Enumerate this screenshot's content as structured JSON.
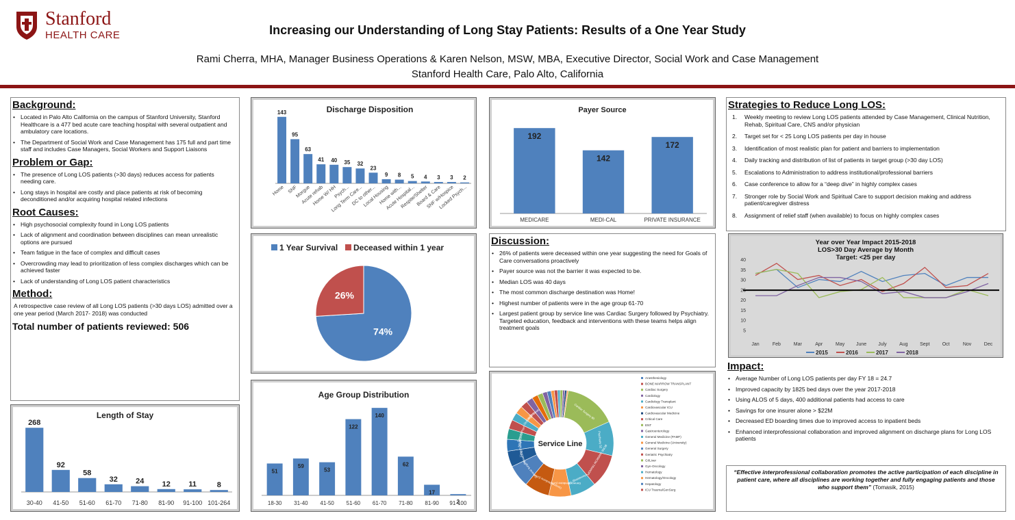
{
  "header": {
    "logo_line1": "Stanford",
    "logo_line2": "HEALTH CARE",
    "title": "Increasing our Understanding of Long Stay Patients:  Results of a One Year Study",
    "authors": "Rami Cherra, MHA, Manager Business Operations & Karen Nelson, MSW, MBA, Executive Director, Social Work and Case Management",
    "affiliation": "Stanford Health Care, Palo Alto, California"
  },
  "background": {
    "heading": "Background:",
    "items": [
      "Located in Palo Alto California on the campus of Stanford University, Stanford Healthcare is a 477 bed acute care teaching hospital with several outpatient and ambulatory care locations.",
      "The Department of Social Work and Case Management has 175 full and part time staff  and includes Case Managers, Social Workers and Support Liaisons"
    ]
  },
  "problem": {
    "heading": "Problem or Gap:",
    "items": [
      "The presence of Long LOS patients (>30 days) reduces access for patients needing care.",
      "Long stays in hospital are costly and place patients at risk of becoming deconditioned and/or acquiring hospital related infections"
    ]
  },
  "root": {
    "heading": "Root  Causes:",
    "items": [
      "High psychosocial complexity found in Long LOS patients",
      "Lack of alignment and coordination between disciplines can mean unrealistic options are pursued",
      "Team fatigue in the face of complex and difficult cases",
      "Overcrowding may lead to prioritization of less complex discharges which can be achieved faster",
      "Lack of understanding of Long LOS patient characteristics"
    ]
  },
  "method": {
    "heading": "Method:",
    "text": "A retrospective case review of all Long LOS patients (>30 days LOS) admitted over a one year period (March 2017- 2018) was conducted",
    "total": "Total number of patients reviewed:  506"
  },
  "strategies": {
    "heading": "Strategies to Reduce Long LOS:",
    "items": [
      {
        "n": "1.",
        "t": "Weekly meeting to review  Long LOS patients attended by  Case Management, Clinical Nutrition, Rehab, Spiritual Care, CNS and/or physician"
      },
      {
        "n": "2.",
        "t": "Target set for < 25 Long LOS patients per day in house"
      },
      {
        "n": "3.",
        "t": "Identification of most realistic plan for patient and barriers to implementation"
      },
      {
        "n": "4.",
        "t": "Daily tracking and distribution of list of patients in target group (>30 day LOS)"
      },
      {
        "n": "5.",
        "t": "Escalations to Administration to address institutional/professional barriers"
      },
      {
        "n": "6.",
        "t": "Case conference to allow for a “deep dive” in highly complex cases"
      },
      {
        "n": "7.",
        "t": "Stronger role by Social Work and Spiritual Care to support decision making and address patient/caregiver distress"
      },
      {
        "n": "8.",
        "t": "Assignment of relief staff (when available) to focus on highly complex cases"
      }
    ]
  },
  "discussion": {
    "heading": "Discussion:",
    "items": [
      "26% of patients were deceased within one year suggesting the need for Goals of Care conversations proactively",
      "Payer source was not the barrier it was expected to be.",
      "Median LOS was 40 days",
      "The most common discharge destination was Home!",
      "Highest number of patients were in the age group 61-70",
      "Largest patient group by service line was Cardiac Surgery followed by Psychiatry. Targeted education, feedback and interventions with these teams helps align treatment goals"
    ]
  },
  "impact": {
    "heading": "Impact:",
    "items": [
      "Average Number of Long LOS patients per day  FY 18 = 24.7",
      "Improved capacity by 1825 bed days over the year 2017-2018",
      "Using ALOS of 5 days, 400 additional patients had access to  care",
      "Savings for one insurer alone > $22M",
      "Decreased ED boarding times due to improved access to inpatient beds",
      "Enhanced interprofessional collaboration and improved alignment on discharge plans for Long LOS patients"
    ]
  },
  "quote": {
    "text": "“Effective interprofessional collaboration promotes the active participation of each discipline in patient care, where all disciplines are working together and fully engaging patients and those who support them”",
    "cite": " (Tomasik, 2015)"
  },
  "colors": {
    "brand": "#8c1515",
    "bar": "#4f81bd",
    "red": "#c0504d",
    "green": "#9bbb59",
    "purple": "#8064a2"
  },
  "chart_data": [
    {
      "id": "los",
      "type": "bar",
      "title": "Length of Stay",
      "categories": [
        "30-40",
        "41-50",
        "51-60",
        "61-70",
        "71-80",
        "81-90",
        "91-100",
        "101-264"
      ],
      "values": [
        268,
        92,
        58,
        32,
        24,
        12,
        11,
        8
      ]
    },
    {
      "id": "disposition",
      "type": "bar",
      "title": "Discharge Disposition",
      "categories": [
        "Home",
        "SNF",
        "Morgue",
        "Acute rehab",
        "Home W/ HH",
        "Psych...",
        "Long Term Care...",
        "DC to other...",
        "Local Housing",
        "Home with...",
        "Acute Hospital...",
        "Respite/Shelter",
        "Board & Care",
        "SNF w/Hospice",
        "Locked Psych..."
      ],
      "values": [
        143,
        95,
        63,
        41,
        40,
        35,
        32,
        23,
        9,
        8,
        5,
        4,
        3,
        3,
        2
      ]
    },
    {
      "id": "survival",
      "type": "pie",
      "series": [
        {
          "name": "1 Year Survival",
          "value": 74,
          "label": "74%"
        },
        {
          "name": "Deceased within 1 year",
          "value": 26,
          "label": "26%"
        }
      ]
    },
    {
      "id": "age",
      "type": "bar",
      "title": "Age Group Distribution",
      "categories": [
        "18-30",
        "31-40",
        "41-50",
        "51-60",
        "61-70",
        "71-80",
        "81-90",
        "91-100"
      ],
      "values": [
        51,
        59,
        53,
        122,
        140,
        62,
        17,
        2
      ]
    },
    {
      "id": "payer",
      "type": "bar",
      "title": "Payer Source",
      "categories": [
        "MEDICARE",
        "MEDI-CAL",
        "PRIVATE INSURANCE"
      ],
      "values": [
        192,
        142,
        172
      ]
    },
    {
      "id": "service",
      "type": "pie",
      "title": "Service Line",
      "legend": [
        "Anesthesiology",
        "BONE MARROW TRANSPLANT",
        "Cardiac Surgery",
        "Cardiology",
        "Cardiology Transplant",
        "Cardiovascular ICU",
        "Cardiovascular Medicine",
        "Critical Care",
        "ENT",
        "Gastroenterology",
        "General Medicine (PAMF)",
        "General Medicine (University)",
        "General Surgery",
        "Geriatric Psychiatry",
        "GI/Liver",
        "Gyn-Oncology",
        "Hematology",
        "Hematology/Oncology",
        "Hepatology",
        "ICU Trauma/GenSurg"
      ],
      "slices": [
        {
          "label": "Cardiac Surgery 80",
          "value": 80,
          "color": "#9bbb59"
        },
        {
          "label": "Psychiatry 52",
          "value": 52,
          "color": "#4bacc6"
        },
        {
          "label": "BONE MARROW TRANSPLANT 51",
          "value": 51,
          "color": "#c0504d"
        },
        {
          "label": "Hematology 39",
          "value": 39,
          "color": "#4bacc6"
        },
        {
          "label": "General Medicine (University) 34",
          "value": 34,
          "color": "#f79646"
        },
        {
          "label": "General Medicine (University) 38",
          "value": 38,
          "color": "#c55a11"
        },
        {
          "label": "General Surgery 34",
          "value": 34,
          "color": "#4f81bd"
        },
        {
          "label": "Hematology 24",
          "value": 24,
          "color": "#1f5a96"
        },
        {
          "label": "Liver Transplant 18",
          "value": 18,
          "color": "#2e75b6"
        },
        {
          "label": "NEUROLOGY 16",
          "value": 16,
          "color": "#2a9d8f"
        },
        {
          "label": "Genetic Psychiatry 14",
          "value": 14,
          "color": "#c0504d"
        },
        {
          "label": "",
          "value": 12,
          "color": "#4bacc6"
        },
        {
          "label": "Oncology 12",
          "value": 12,
          "color": "#f79646"
        },
        {
          "label": "Critical Care 11",
          "value": 11,
          "color": "#c0504d"
        },
        {
          "label": "Hematology 10",
          "value": 10,
          "color": "#8064a2"
        },
        {
          "label": "",
          "value": 9,
          "color": "#e46c0a"
        },
        {
          "label": "",
          "value": 8,
          "color": "#9bbb59"
        },
        {
          "label": "",
          "value": 7,
          "color": "#8064a2"
        },
        {
          "label": "",
          "value": 6,
          "color": "#4f81bd"
        },
        {
          "label": "",
          "value": 5,
          "color": "#f79646"
        },
        {
          "label": "",
          "value": 5,
          "color": "#c0504d"
        },
        {
          "label": "",
          "value": 4,
          "color": "#4bacc6"
        },
        {
          "label": "",
          "value": 4,
          "color": "#9bbb59"
        },
        {
          "label": "",
          "value": 3,
          "color": "#8064a2"
        },
        {
          "label": "",
          "value": 3,
          "color": "#1f497d"
        },
        {
          "label": "",
          "value": 2,
          "color": "#f79646"
        }
      ]
    },
    {
      "id": "yoy",
      "type": "line",
      "title": "Year over Year Impact 2015-2018",
      "subtitle": "LOS>30 Day Average by Month",
      "subtitle2": "Target: <25 per day",
      "categories": [
        "Jan",
        "Feb",
        "Mar",
        "Apr",
        "May",
        "June",
        "July",
        "Aug",
        "Sept",
        "Oct",
        "Nov",
        "Dec"
      ],
      "yticks": [
        5,
        10,
        15,
        20,
        25,
        30,
        35,
        40
      ],
      "ylim": [
        0,
        40
      ],
      "target": 24.7,
      "series": [
        {
          "name": "2015",
          "color": "#4f81bd",
          "values": [
            33,
            35,
            26,
            30,
            29,
            34,
            29,
            32,
            33,
            27,
            31,
            31
          ]
        },
        {
          "name": "2016",
          "color": "#c0504d",
          "values": [
            32,
            38,
            30,
            32,
            27,
            30,
            24,
            28,
            36,
            26,
            27,
            33
          ]
        },
        {
          "name": "2017",
          "color": "#9bbb59",
          "values": [
            33,
            35,
            33,
            21,
            24,
            25,
            31,
            21,
            21,
            21,
            25,
            22
          ]
        },
        {
          "name": "2018",
          "color": "#8064a2",
          "values": [
            22,
            22,
            27,
            31,
            31,
            29,
            23,
            24,
            21,
            21,
            24,
            28
          ]
        }
      ]
    }
  ]
}
